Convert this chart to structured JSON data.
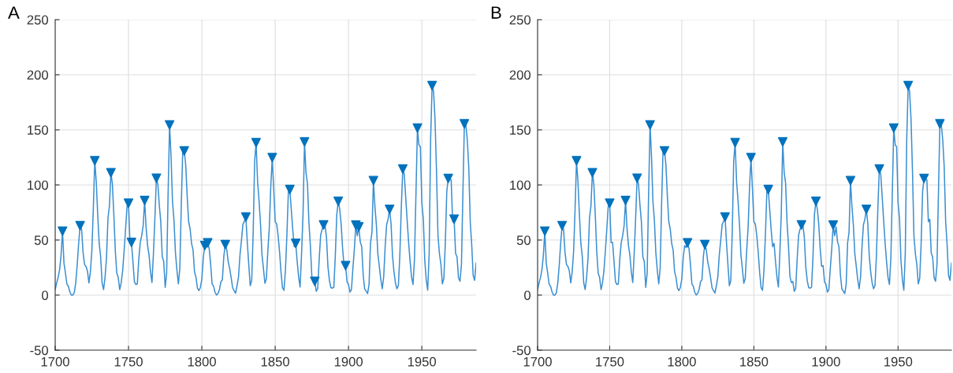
{
  "chart_data": [
    {
      "type": "line",
      "title": "A",
      "xlim": [
        1700,
        1987
      ],
      "xticks": [
        1700,
        1750,
        1800,
        1850,
        1900,
        1950
      ],
      "ylim": [
        -50,
        250
      ],
      "yticks": [
        -50,
        0,
        50,
        100,
        150,
        200,
        250
      ],
      "grid": true,
      "series": [
        {
          "color": "#3b8fd1",
          "x": [
            1700,
            1701,
            1702,
            1703,
            1704,
            1705,
            1706,
            1707,
            1708,
            1709,
            1710,
            1711,
            1712,
            1713,
            1714,
            1715,
            1716,
            1717,
            1718,
            1719,
            1720,
            1721,
            1722,
            1723,
            1724,
            1725,
            1726,
            1727,
            1728,
            1729,
            1730,
            1731,
            1732,
            1733,
            1734,
            1735,
            1736,
            1737,
            1738,
            1739,
            1740,
            1741,
            1742,
            1743,
            1744,
            1745,
            1746,
            1747,
            1748,
            1749,
            1750,
            1751,
            1752,
            1753,
            1754,
            1755,
            1756,
            1757,
            1758,
            1759,
            1760,
            1761,
            1762,
            1763,
            1764,
            1765,
            1766,
            1767,
            1768,
            1769,
            1770,
            1771,
            1772,
            1773,
            1774,
            1775,
            1776,
            1777,
            1778,
            1779,
            1780,
            1781,
            1782,
            1783,
            1784,
            1785,
            1786,
            1787,
            1788,
            1789,
            1790,
            1791,
            1792,
            1793,
            1794,
            1795,
            1796,
            1797,
            1798,
            1799,
            1800,
            1801,
            1802,
            1803,
            1804,
            1805,
            1806,
            1807,
            1808,
            1809,
            1810,
            1811,
            1812,
            1813,
            1814,
            1815,
            1816,
            1817,
            1818,
            1819,
            1820,
            1821,
            1822,
            1823,
            1824,
            1825,
            1826,
            1827,
            1828,
            1829,
            1830,
            1831,
            1832,
            1833,
            1834,
            1835,
            1836,
            1837,
            1838,
            1839,
            1840,
            1841,
            1842,
            1843,
            1844,
            1845,
            1846,
            1847,
            1848,
            1849,
            1850,
            1851,
            1852,
            1853,
            1854,
            1855,
            1856,
            1857,
            1858,
            1859,
            1860,
            1861,
            1862,
            1863,
            1864,
            1865,
            1866,
            1867,
            1868,
            1869,
            1870,
            1871,
            1872,
            1873,
            1874,
            1875,
            1876,
            1877,
            1878,
            1879,
            1880,
            1881,
            1882,
            1883,
            1884,
            1885,
            1886,
            1887,
            1888,
            1889,
            1890,
            1891,
            1892,
            1893,
            1894,
            1895,
            1896,
            1897,
            1898,
            1899,
            1900,
            1901,
            1902,
            1903,
            1904,
            1905,
            1906,
            1907,
            1908,
            1909,
            1910,
            1911,
            1912,
            1913,
            1914,
            1915,
            1916,
            1917,
            1918,
            1919,
            1920,
            1921,
            1922,
            1923,
            1924,
            1925,
            1926,
            1927,
            1928,
            1929,
            1930,
            1931,
            1932,
            1933,
            1934,
            1935,
            1936,
            1937,
            1938,
            1939,
            1940,
            1941,
            1942,
            1943,
            1944,
            1945,
            1946,
            1947,
            1948,
            1949,
            1950,
            1951,
            1952,
            1953,
            1954,
            1955,
            1956,
            1957,
            1958,
            1959,
            1960,
            1961,
            1962,
            1963,
            1964,
            1965,
            1966,
            1967,
            1968,
            1969,
            1970,
            1971,
            1972,
            1973,
            1974,
            1975,
            1976,
            1977,
            1978,
            1979,
            1980,
            1981,
            1982,
            1983,
            1984,
            1985,
            1986,
            1987
          ],
          "values": [
            5,
            11,
            16,
            23,
            36,
            58,
            29,
            20,
            10,
            8,
            3,
            0,
            0,
            2,
            11,
            27,
            47,
            63,
            60,
            39,
            28,
            26,
            22,
            11,
            21,
            40,
            78,
            122,
            103,
            73,
            47,
            35,
            11,
            5,
            16,
            34,
            70,
            81,
            111,
            101,
            73,
            40,
            20,
            16,
            5,
            11,
            22,
            40,
            60,
            80.9,
            83.4,
            47.7,
            47.8,
            30.7,
            12.2,
            9.6,
            10.2,
            32.4,
            47.6,
            54,
            62.9,
            85.9,
            61.2,
            45.1,
            36.4,
            20.9,
            11.4,
            37.8,
            69.8,
            106.1,
            100.8,
            81.6,
            66.5,
            34.8,
            30.6,
            7,
            19.8,
            92.5,
            154.4,
            125.9,
            84.8,
            68.1,
            38.5,
            22.8,
            10.2,
            24.1,
            82.9,
            132,
            130.9,
            118.1,
            89.9,
            66.6,
            60,
            46.9,
            41,
            21.3,
            16,
            6.4,
            4.1,
            6.8,
            14.5,
            34,
            45,
            43.1,
            47.5,
            42.2,
            28.1,
            10.1,
            8.1,
            2.5,
            0,
            1.4,
            5,
            12.2,
            13.9,
            35.4,
            45.8,
            41.1,
            30.1,
            23.9,
            15.6,
            6.6,
            4,
            1.8,
            8.5,
            16.6,
            36.3,
            49.6,
            64.2,
            67,
            70.9,
            47.8,
            27.5,
            8.5,
            13.2,
            56.9,
            121.5,
            138.3,
            103.2,
            85.7,
            64.6,
            36.7,
            24.2,
            10.7,
            15,
            40.1,
            61.5,
            98.5,
            124.7,
            96.3,
            66.6,
            64.5,
            54.1,
            39,
            20.6,
            6.7,
            4.3,
            22.7,
            54.8,
            93.8,
            95.8,
            77.2,
            59.1,
            44,
            47,
            30.5,
            16.3,
            7.3,
            37.6,
            74,
            139,
            111.2,
            101.6,
            66.2,
            44.7,
            17,
            11.3,
            12.4,
            3.4,
            6,
            32.3,
            54.3,
            59.7,
            63.7,
            63.5,
            52.2,
            25.4,
            13.1,
            6.8,
            6.3,
            7.1,
            35.6,
            73,
            85.1,
            78,
            64,
            41.8,
            26.2,
            26.7,
            12.1,
            9.5,
            2.7,
            5,
            24.4,
            42,
            63.5,
            53.8,
            62,
            48.5,
            43.9,
            18.6,
            5.7,
            3.6,
            1.4,
            9.6,
            47.4,
            57.1,
            103.9,
            80.6,
            63.6,
            37.6,
            26.1,
            14.2,
            5.8,
            16.7,
            44.3,
            63.9,
            69,
            77.8,
            64.9,
            35.7,
            21.2,
            11.1,
            5.7,
            8.7,
            36.1,
            79.7,
            114.4,
            109.6,
            88.8,
            67.8,
            47.5,
            30.6,
            16.3,
            9.6,
            33.2,
            92.6,
            151.6,
            136.3,
            134.7,
            83.9,
            69.4,
            31.5,
            13.9,
            4.4,
            38,
            141.7,
            190.2,
            184.8,
            159,
            112.3,
            53.9,
            37.5,
            27.9,
            10.2,
            15.1,
            47,
            93.8,
            105.9,
            105.5,
            104.5,
            66.6,
            68.9,
            38,
            34.5,
            15.5,
            12.6,
            27.5,
            92.5,
            155.4,
            154.6,
            140.5,
            115.9,
            66.6,
            45.9,
            17.9,
            13.4,
            29.2
          ]
        },
        {
          "type": "scatter",
          "color": "#0072bd",
          "marker": "triangle",
          "x": [
            1705,
            1717,
            1727,
            1738,
            1750,
            1752,
            1761,
            1769,
            1778,
            1788,
            1802,
            1804,
            1816,
            1830,
            1837,
            1848,
            1860,
            1864,
            1870,
            1877,
            1883,
            1893,
            1898,
            1905,
            1907,
            1917,
            1928,
            1937,
            1947,
            1957,
            1968,
            1972,
            1979
          ],
          "values": [
            58,
            63,
            122,
            111,
            83.4,
            47.8,
            85.9,
            106.1,
            154.4,
            130.9,
            45,
            47.5,
            45.8,
            70.9,
            138.3,
            124.7,
            95.8,
            47,
            139,
            12.4,
            63.7,
            85.1,
            26.7,
            63.5,
            62,
            103.9,
            77.8,
            114.4,
            151.6,
            190.2,
            105.9,
            68.9,
            155.4
          ]
        }
      ]
    },
    {
      "type": "line",
      "title": "B",
      "xlim": [
        1700,
        1987
      ],
      "xticks": [
        1700,
        1750,
        1800,
        1850,
        1900,
        1950
      ],
      "ylim": [
        -50,
        250
      ],
      "yticks": [
        -50,
        0,
        50,
        100,
        150,
        200,
        250
      ],
      "grid": true,
      "series": [
        {
          "color": "#3b8fd1",
          "x": [
            1700,
            1701,
            1702,
            1703,
            1704,
            1705,
            1706,
            1707,
            1708,
            1709,
            1710,
            1711,
            1712,
            1713,
            1714,
            1715,
            1716,
            1717,
            1718,
            1719,
            1720,
            1721,
            1722,
            1723,
            1724,
            1725,
            1726,
            1727,
            1728,
            1729,
            1730,
            1731,
            1732,
            1733,
            1734,
            1735,
            1736,
            1737,
            1738,
            1739,
            1740,
            1741,
            1742,
            1743,
            1744,
            1745,
            1746,
            1747,
            1748,
            1749,
            1750,
            1751,
            1752,
            1753,
            1754,
            1755,
            1756,
            1757,
            1758,
            1759,
            1760,
            1761,
            1762,
            1763,
            1764,
            1765,
            1766,
            1767,
            1768,
            1769,
            1770,
            1771,
            1772,
            1773,
            1774,
            1775,
            1776,
            1777,
            1778,
            1779,
            1780,
            1781,
            1782,
            1783,
            1784,
            1785,
            1786,
            1787,
            1788,
            1789,
            1790,
            1791,
            1792,
            1793,
            1794,
            1795,
            1796,
            1797,
            1798,
            1799,
            1800,
            1801,
            1802,
            1803,
            1804,
            1805,
            1806,
            1807,
            1808,
            1809,
            1810,
            1811,
            1812,
            1813,
            1814,
            1815,
            1816,
            1817,
            1818,
            1819,
            1820,
            1821,
            1822,
            1823,
            1824,
            1825,
            1826,
            1827,
            1828,
            1829,
            1830,
            1831,
            1832,
            1833,
            1834,
            1835,
            1836,
            1837,
            1838,
            1839,
            1840,
            1841,
            1842,
            1843,
            1844,
            1845,
            1846,
            1847,
            1848,
            1849,
            1850,
            1851,
            1852,
            1853,
            1854,
            1855,
            1856,
            1857,
            1858,
            1859,
            1860,
            1861,
            1862,
            1863,
            1864,
            1865,
            1866,
            1867,
            1868,
            1869,
            1870,
            1871,
            1872,
            1873,
            1874,
            1875,
            1876,
            1877,
            1878,
            1879,
            1880,
            1881,
            1882,
            1883,
            1884,
            1885,
            1886,
            1887,
            1888,
            1889,
            1890,
            1891,
            1892,
            1893,
            1894,
            1895,
            1896,
            1897,
            1898,
            1899,
            1900,
            1901,
            1902,
            1903,
            1904,
            1905,
            1906,
            1907,
            1908,
            1909,
            1910,
            1911,
            1912,
            1913,
            1914,
            1915,
            1916,
            1917,
            1918,
            1919,
            1920,
            1921,
            1922,
            1923,
            1924,
            1925,
            1926,
            1927,
            1928,
            1929,
            1930,
            1931,
            1932,
            1933,
            1934,
            1935,
            1936,
            1937,
            1938,
            1939,
            1940,
            1941,
            1942,
            1943,
            1944,
            1945,
            1946,
            1947,
            1948,
            1949,
            1950,
            1951,
            1952,
            1953,
            1954,
            1955,
            1956,
            1957,
            1958,
            1959,
            1960,
            1961,
            1962,
            1963,
            1964,
            1965,
            1966,
            1967,
            1968,
            1969,
            1970,
            1971,
            1972,
            1973,
            1974,
            1975,
            1976,
            1977,
            1978,
            1979,
            1980,
            1981,
            1982,
            1983,
            1984,
            1985,
            1986,
            1987
          ],
          "values": [
            5,
            11,
            16,
            23,
            36,
            58,
            29,
            20,
            10,
            8,
            3,
            0,
            0,
            2,
            11,
            27,
            47,
            63,
            60,
            39,
            28,
            26,
            22,
            11,
            21,
            40,
            78,
            122,
            103,
            73,
            47,
            35,
            11,
            5,
            16,
            34,
            70,
            81,
            111,
            101,
            73,
            40,
            20,
            16,
            5,
            11,
            22,
            40,
            60,
            80.9,
            83.4,
            47.7,
            47.8,
            30.7,
            12.2,
            9.6,
            10.2,
            32.4,
            47.6,
            54,
            62.9,
            85.9,
            61.2,
            45.1,
            36.4,
            20.9,
            11.4,
            37.8,
            69.8,
            106.1,
            100.8,
            81.6,
            66.5,
            34.8,
            30.6,
            7,
            19.8,
            92.5,
            154.4,
            125.9,
            84.8,
            68.1,
            38.5,
            22.8,
            10.2,
            24.1,
            82.9,
            132,
            130.9,
            118.1,
            89.9,
            66.6,
            60,
            46.9,
            41,
            21.3,
            16,
            6.4,
            4.1,
            6.8,
            14.5,
            34,
            45,
            43.1,
            47.5,
            42.2,
            28.1,
            10.1,
            8.1,
            2.5,
            0,
            1.4,
            5,
            12.2,
            13.9,
            35.4,
            45.8,
            41.1,
            30.1,
            23.9,
            15.6,
            6.6,
            4,
            1.8,
            8.5,
            16.6,
            36.3,
            49.6,
            64.2,
            67,
            70.9,
            47.8,
            27.5,
            8.5,
            13.2,
            56.9,
            121.5,
            138.3,
            103.2,
            85.7,
            64.6,
            36.7,
            24.2,
            10.7,
            15,
            40.1,
            61.5,
            98.5,
            124.7,
            96.3,
            66.6,
            64.5,
            54.1,
            39,
            20.6,
            6.7,
            4.3,
            22.7,
            54.8,
            93.8,
            95.8,
            77.2,
            59.1,
            44,
            47,
            30.5,
            16.3,
            7.3,
            37.6,
            74,
            139,
            111.2,
            101.6,
            66.2,
            44.7,
            17,
            11.3,
            12.4,
            3.4,
            6,
            32.3,
            54.3,
            59.7,
            63.7,
            63.5,
            52.2,
            25.4,
            13.1,
            6.8,
            6.3,
            7.1,
            35.6,
            73,
            85.1,
            78,
            64,
            41.8,
            26.2,
            26.7,
            12.1,
            9.5,
            2.7,
            5,
            24.4,
            42,
            63.5,
            53.8,
            62,
            48.5,
            43.9,
            18.6,
            5.7,
            3.6,
            1.4,
            9.6,
            47.4,
            57.1,
            103.9,
            80.6,
            63.6,
            37.6,
            26.1,
            14.2,
            5.8,
            16.7,
            44.3,
            63.9,
            69,
            77.8,
            64.9,
            35.7,
            21.2,
            11.1,
            5.7,
            8.7,
            36.1,
            79.7,
            114.4,
            109.6,
            88.8,
            67.8,
            47.5,
            30.6,
            16.3,
            9.6,
            33.2,
            92.6,
            151.6,
            136.3,
            134.7,
            83.9,
            69.4,
            31.5,
            13.9,
            4.4,
            38,
            141.7,
            190.2,
            184.8,
            159,
            112.3,
            53.9,
            37.5,
            27.9,
            10.2,
            15.1,
            47,
            93.8,
            105.9,
            105.5,
            104.5,
            66.6,
            68.9,
            38,
            34.5,
            15.5,
            12.6,
            27.5,
            92.5,
            155.4,
            154.6,
            140.5,
            115.9,
            66.6,
            45.9,
            17.9,
            13.4,
            29.2
          ]
        },
        {
          "type": "scatter",
          "color": "#0072bd",
          "marker": "triangle",
          "x": [
            1705,
            1717,
            1727,
            1738,
            1750,
            1761,
            1769,
            1778,
            1788,
            1804,
            1816,
            1830,
            1837,
            1848,
            1860,
            1870,
            1883,
            1893,
            1905,
            1917,
            1928,
            1937,
            1947,
            1957,
            1968,
            1979
          ],
          "values": [
            58,
            63,
            122,
            111,
            83.4,
            85.9,
            106.1,
            154.4,
            130.9,
            47.5,
            45.8,
            70.9,
            138.3,
            124.7,
            95.8,
            139,
            63.7,
            85.1,
            63.5,
            103.9,
            77.8,
            114.4,
            151.6,
            190.2,
            105.9,
            155.4
          ]
        }
      ]
    }
  ]
}
